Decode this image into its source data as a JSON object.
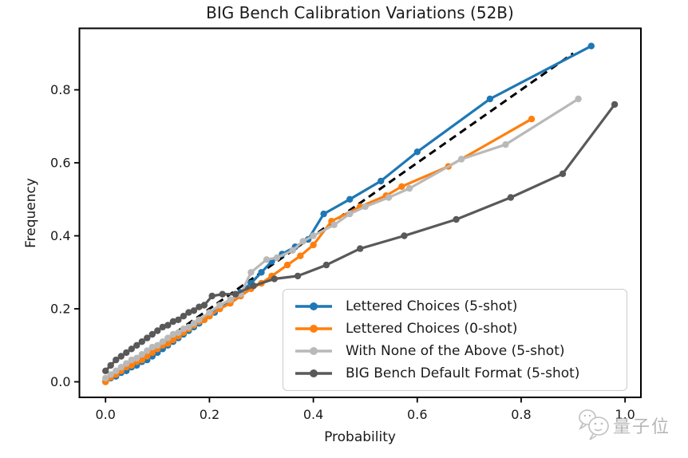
{
  "figure": {
    "watermark_text": "量子位"
  },
  "chart_data": {
    "type": "line",
    "title": "BIG Bench Calibration Variations (52B)",
    "xlabel": "Probability",
    "ylabel": "Frequency",
    "xlim": [
      -0.0503,
      1.0305
    ],
    "ylim": [
      -0.0426,
      0.9685
    ],
    "xticks": [
      "0.0",
      "0.2",
      "0.4",
      "0.6",
      "0.8",
      "1.0"
    ],
    "yticks": [
      "0.0",
      "0.2",
      "0.4",
      "0.6",
      "0.8"
    ],
    "grid": false,
    "legend": {
      "position": "lower right inside",
      "entries": [
        "Lettered Choices (5-shot)",
        "Lettered Choices (0-shot)",
        "With None of the Above (5-shot)",
        "BIG Bench Default Format (5-shot)"
      ]
    },
    "reference_line": {
      "description": "perfect calibration y = x",
      "style": "dashed",
      "color": "#000000",
      "x": [
        0.0,
        0.9
      ],
      "y": [
        0.0,
        0.9
      ]
    },
    "series": [
      {
        "name": "Lettered Choices (5-shot)",
        "color": "#1f77b4",
        "points": [
          [
            0.0,
            0.0
          ],
          [
            0.01,
            0.01
          ],
          [
            0.02,
            0.015
          ],
          [
            0.03,
            0.025
          ],
          [
            0.04,
            0.03
          ],
          [
            0.05,
            0.04
          ],
          [
            0.06,
            0.045
          ],
          [
            0.07,
            0.055
          ],
          [
            0.08,
            0.06
          ],
          [
            0.09,
            0.07
          ],
          [
            0.1,
            0.08
          ],
          [
            0.11,
            0.09
          ],
          [
            0.12,
            0.1
          ],
          [
            0.13,
            0.11
          ],
          [
            0.14,
            0.12
          ],
          [
            0.15,
            0.13
          ],
          [
            0.16,
            0.14
          ],
          [
            0.17,
            0.15
          ],
          [
            0.18,
            0.16
          ],
          [
            0.19,
            0.17
          ],
          [
            0.2,
            0.18
          ],
          [
            0.21,
            0.19
          ],
          [
            0.22,
            0.2
          ],
          [
            0.24,
            0.22
          ],
          [
            0.26,
            0.245
          ],
          [
            0.28,
            0.27
          ],
          [
            0.3,
            0.3
          ],
          [
            0.32,
            0.33
          ],
          [
            0.34,
            0.35
          ],
          [
            0.365,
            0.37
          ],
          [
            0.39,
            0.39
          ],
          [
            0.42,
            0.46
          ],
          [
            0.47,
            0.5
          ],
          [
            0.53,
            0.55
          ],
          [
            0.6,
            0.63
          ],
          [
            0.74,
            0.775
          ],
          [
            0.935,
            0.92
          ]
        ]
      },
      {
        "name": "Lettered Choices (0-shot)",
        "color": "#ff7f0e",
        "points": [
          [
            0.0,
            0.0
          ],
          [
            0.01,
            0.012
          ],
          [
            0.02,
            0.02
          ],
          [
            0.03,
            0.03
          ],
          [
            0.04,
            0.04
          ],
          [
            0.05,
            0.045
          ],
          [
            0.06,
            0.055
          ],
          [
            0.07,
            0.06
          ],
          [
            0.08,
            0.07
          ],
          [
            0.09,
            0.08
          ],
          [
            0.1,
            0.09
          ],
          [
            0.11,
            0.1
          ],
          [
            0.12,
            0.105
          ],
          [
            0.13,
            0.115
          ],
          [
            0.14,
            0.125
          ],
          [
            0.15,
            0.135
          ],
          [
            0.16,
            0.145
          ],
          [
            0.17,
            0.155
          ],
          [
            0.18,
            0.165
          ],
          [
            0.19,
            0.17
          ],
          [
            0.2,
            0.18
          ],
          [
            0.22,
            0.2
          ],
          [
            0.24,
            0.215
          ],
          [
            0.26,
            0.235
          ],
          [
            0.28,
            0.255
          ],
          [
            0.3,
            0.27
          ],
          [
            0.32,
            0.29
          ],
          [
            0.35,
            0.32
          ],
          [
            0.375,
            0.345
          ],
          [
            0.4,
            0.375
          ],
          [
            0.435,
            0.44
          ],
          [
            0.49,
            0.48
          ],
          [
            0.54,
            0.51
          ],
          [
            0.57,
            0.535
          ],
          [
            0.66,
            0.59
          ],
          [
            0.82,
            0.72
          ]
        ]
      },
      {
        "name": "With None of the Above (5-shot)",
        "color": "#b9b9b9",
        "points": [
          [
            0.0,
            0.01
          ],
          [
            0.01,
            0.02
          ],
          [
            0.02,
            0.03
          ],
          [
            0.03,
            0.04
          ],
          [
            0.04,
            0.05
          ],
          [
            0.05,
            0.06
          ],
          [
            0.06,
            0.065
          ],
          [
            0.07,
            0.075
          ],
          [
            0.08,
            0.085
          ],
          [
            0.09,
            0.095
          ],
          [
            0.1,
            0.1
          ],
          [
            0.11,
            0.11
          ],
          [
            0.12,
            0.12
          ],
          [
            0.13,
            0.13
          ],
          [
            0.14,
            0.135
          ],
          [
            0.15,
            0.145
          ],
          [
            0.16,
            0.15
          ],
          [
            0.17,
            0.16
          ],
          [
            0.18,
            0.17
          ],
          [
            0.2,
            0.19
          ],
          [
            0.22,
            0.21
          ],
          [
            0.24,
            0.225
          ],
          [
            0.26,
            0.24
          ],
          [
            0.28,
            0.3
          ],
          [
            0.31,
            0.335
          ],
          [
            0.33,
            0.34
          ],
          [
            0.36,
            0.36
          ],
          [
            0.38,
            0.385
          ],
          [
            0.4,
            0.4
          ],
          [
            0.44,
            0.43
          ],
          [
            0.47,
            0.46
          ],
          [
            0.5,
            0.48
          ],
          [
            0.545,
            0.505
          ],
          [
            0.585,
            0.53
          ],
          [
            0.685,
            0.61
          ],
          [
            0.77,
            0.65
          ],
          [
            0.91,
            0.775
          ]
        ]
      },
      {
        "name": "BIG Bench Default Format (5-shot)",
        "color": "#595959",
        "points": [
          [
            0.0,
            0.03
          ],
          [
            0.01,
            0.045
          ],
          [
            0.02,
            0.06
          ],
          [
            0.03,
            0.07
          ],
          [
            0.04,
            0.08
          ],
          [
            0.05,
            0.09
          ],
          [
            0.06,
            0.1
          ],
          [
            0.07,
            0.11
          ],
          [
            0.08,
            0.12
          ],
          [
            0.09,
            0.13
          ],
          [
            0.1,
            0.14
          ],
          [
            0.11,
            0.15
          ],
          [
            0.12,
            0.155
          ],
          [
            0.13,
            0.165
          ],
          [
            0.14,
            0.17
          ],
          [
            0.15,
            0.18
          ],
          [
            0.16,
            0.19
          ],
          [
            0.17,
            0.195
          ],
          [
            0.18,
            0.205
          ],
          [
            0.19,
            0.21
          ],
          [
            0.205,
            0.235
          ],
          [
            0.225,
            0.24
          ],
          [
            0.25,
            0.24
          ],
          [
            0.285,
            0.263
          ],
          [
            0.325,
            0.282
          ],
          [
            0.37,
            0.29
          ],
          [
            0.425,
            0.32
          ],
          [
            0.49,
            0.365
          ],
          [
            0.575,
            0.4
          ],
          [
            0.675,
            0.445
          ],
          [
            0.78,
            0.505
          ],
          [
            0.88,
            0.57
          ],
          [
            0.98,
            0.76
          ]
        ]
      }
    ]
  }
}
